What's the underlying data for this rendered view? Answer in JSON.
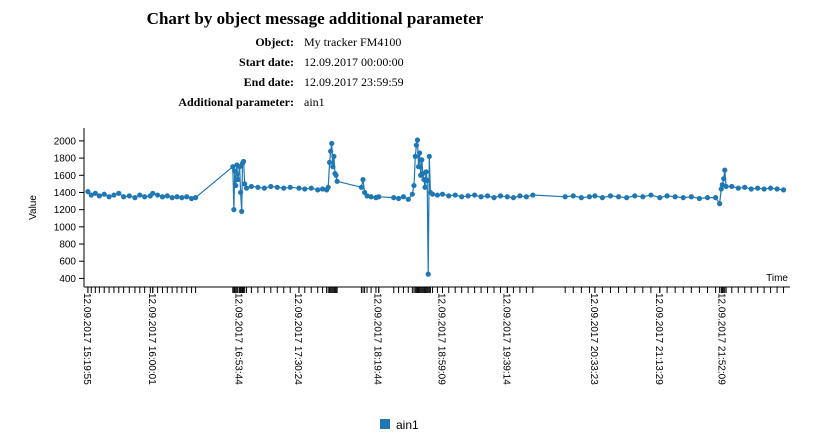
{
  "header": {
    "title": "Chart by object message additional parameter",
    "rows": [
      [
        "Object:",
        "My tracker FM4100"
      ],
      [
        "Start date:",
        "12.09.2017 00:00:00"
      ],
      [
        "End date:",
        "12.09.2017 23:59:59"
      ],
      [
        "Additional parameter:",
        "ain1"
      ]
    ]
  },
  "chart_data": {
    "type": "line",
    "x_label": "Time",
    "y_label": "Value",
    "xlim": [
      "12.09.2017 15:17:30",
      "12.09.2017 22:34:00"
    ],
    "xticks": [
      "12.09.2017 15:19:55",
      "12.09.2017 16:00:01",
      "12.09.2017 16:53:44",
      "12.09.2017 17:30:24",
      "12.09.2017 18:19:44",
      "12.09.2017 18:59:09",
      "12.09.2017 19:39:14",
      "12.09.2017 20:33:23",
      "12.09.2017 21:13:29",
      "12.09.2017 21:52:09"
    ],
    "ylim": [
      300,
      2150
    ],
    "yticks": [
      400,
      600,
      800,
      1000,
      1200,
      1400,
      1600,
      1800,
      2000
    ],
    "x": [
      "12.09.2017 15:19:55",
      "12.09.2017 15:22:00",
      "12.09.2017 15:24:30",
      "12.09.2017 15:27:00",
      "12.09.2017 15:30:00",
      "12.09.2017 15:33:00",
      "12.09.2017 15:36:00",
      "12.09.2017 15:39:00",
      "12.09.2017 15:42:00",
      "12.09.2017 15:45:30",
      "12.09.2017 15:49:00",
      "12.09.2017 15:52:00",
      "12.09.2017 15:55:00",
      "12.09.2017 15:58:30",
      "12.09.2017 16:00:01",
      "12.09.2017 16:03:00",
      "12.09.2017 16:06:00",
      "12.09.2017 16:09:00",
      "12.09.2017 16:12:00",
      "12.09.2017 16:15:00",
      "12.09.2017 16:18:00",
      "12.09.2017 16:21:00",
      "12.09.2017 16:24:00",
      "12.09.2017 16:26:30",
      "12.09.2017 16:49:30",
      "12.09.2017 16:50:10",
      "12.09.2017 16:50:40",
      "12.09.2017 16:51:20",
      "12.09.2017 16:52:00",
      "12.09.2017 16:52:40",
      "12.09.2017 16:53:44",
      "12.09.2017 16:54:20",
      "12.09.2017 16:55:00",
      "12.09.2017 16:55:30",
      "12.09.2017 16:56:10",
      "12.09.2017 16:56:50",
      "12.09.2017 16:58:00",
      "12.09.2017 17:01:00",
      "12.09.2017 17:05:00",
      "12.09.2017 17:09:00",
      "12.09.2017 17:13:00",
      "12.09.2017 17:17:00",
      "12.09.2017 17:21:00",
      "12.09.2017 17:25:00",
      "12.09.2017 17:30:24",
      "12.09.2017 17:34:00",
      "12.09.2017 17:38:00",
      "12.09.2017 17:42:00",
      "12.09.2017 17:45:00",
      "12.09.2017 17:47:30",
      "12.09.2017 17:48:30",
      "12.09.2017 17:49:20",
      "12.09.2017 17:50:00",
      "12.09.2017 17:50:40",
      "12.09.2017 17:51:20",
      "12.09.2017 17:52:00",
      "12.09.2017 17:52:40",
      "12.09.2017 17:53:20",
      "12.09.2017 17:54:00",
      "12.09.2017 18:09:00",
      "12.09.2017 18:10:00",
      "12.09.2017 18:11:00",
      "12.09.2017 18:12:30",
      "12.09.2017 18:15:00",
      "12.09.2017 18:18:00",
      "12.09.2017 18:19:44",
      "12.09.2017 18:29:00",
      "12.09.2017 18:32:00",
      "12.09.2017 18:35:00",
      "12.09.2017 18:38:00",
      "12.09.2017 18:40:30",
      "12.09.2017 18:41:30",
      "12.09.2017 18:42:20",
      "12.09.2017 18:43:00",
      "12.09.2017 18:43:40",
      "12.09.2017 18:44:20",
      "12.09.2017 18:45:00",
      "12.09.2017 18:45:40",
      "12.09.2017 18:46:20",
      "12.09.2017 18:47:00",
      "12.09.2017 18:47:40",
      "12.09.2017 18:48:20",
      "12.09.2017 18:49:00",
      "12.09.2017 18:49:40",
      "12.09.2017 18:50:20",
      "12.09.2017 18:51:00",
      "12.09.2017 18:51:40",
      "12.09.2017 18:53:00",
      "12.09.2017 18:56:00",
      "12.09.2017 18:59:09",
      "12.09.2017 19:03:00",
      "12.09.2017 19:07:00",
      "12.09.2017 19:11:00",
      "12.09.2017 19:15:00",
      "12.09.2017 19:19:00",
      "12.09.2017 19:23:00",
      "12.09.2017 19:27:00",
      "12.09.2017 19:31:00",
      "12.09.2017 19:35:00",
      "12.09.2017 19:39:14",
      "12.09.2017 19:43:00",
      "12.09.2017 19:47:00",
      "12.09.2017 19:51:00",
      "12.09.2017 19:55:00",
      "12.09.2017 20:15:00",
      "12.09.2017 20:20:00",
      "12.09.2017 20:25:00",
      "12.09.2017 20:30:00",
      "12.09.2017 20:33:23",
      "12.09.2017 20:38:00",
      "12.09.2017 20:43:00",
      "12.09.2017 20:48:00",
      "12.09.2017 20:53:00",
      "12.09.2017 20:58:00",
      "12.09.2017 21:03:00",
      "12.09.2017 21:08:00",
      "12.09.2017 21:13:29",
      "12.09.2017 21:18:00",
      "12.09.2017 21:23:00",
      "12.09.2017 21:28:00",
      "12.09.2017 21:33:00",
      "12.09.2017 21:38:00",
      "12.09.2017 21:43:00",
      "12.09.2017 21:48:00",
      "12.09.2017 21:50:30",
      "12.09.2017 21:51:30",
      "12.09.2017 21:52:09",
      "12.09.2017 21:53:00",
      "12.09.2017 21:53:40",
      "12.09.2017 21:54:30",
      "12.09.2017 21:58:00",
      "12.09.2017 22:02:00",
      "12.09.2017 22:06:00",
      "12.09.2017 22:10:00",
      "12.09.2017 22:14:00",
      "12.09.2017 22:18:00",
      "12.09.2017 22:22:00",
      "12.09.2017 22:26:00",
      "12.09.2017 22:30:00"
    ],
    "series": [
      {
        "name": "ain1",
        "color": "#1f77b4",
        "values": [
          1410,
          1370,
          1390,
          1360,
          1380,
          1350,
          1370,
          1390,
          1350,
          1360,
          1340,
          1370,
          1350,
          1360,
          1390,
          1370,
          1350,
          1360,
          1340,
          1350,
          1340,
          1350,
          1330,
          1340,
          1700,
          1200,
          1650,
          1480,
          1720,
          1550,
          1700,
          1400,
          1180,
          1740,
          1760,
          1500,
          1450,
          1470,
          1460,
          1450,
          1470,
          1460,
          1450,
          1460,
          1450,
          1440,
          1450,
          1430,
          1440,
          1430,
          1460,
          1750,
          1880,
          1970,
          1700,
          1820,
          1620,
          1600,
          1530,
          1460,
          1550,
          1400,
          1360,
          1350,
          1340,
          1350,
          1340,
          1330,
          1350,
          1320,
          1380,
          1480,
          1820,
          1950,
          2010,
          1700,
          1860,
          1600,
          1780,
          1620,
          1550,
          1460,
          1640,
          1540,
          450,
          1820,
          1400,
          1380,
          1370,
          1380,
          1360,
          1370,
          1350,
          1360,
          1370,
          1350,
          1360,
          1340,
          1360,
          1350,
          1340,
          1360,
          1350,
          1370,
          1350,
          1360,
          1340,
          1350,
          1360,
          1340,
          1360,
          1350,
          1340,
          1360,
          1350,
          1370,
          1340,
          1360,
          1350,
          1340,
          1350,
          1330,
          1340,
          1340,
          1270,
          1440,
          1490,
          1560,
          1660,
          1470,
          1470,
          1450,
          1460,
          1440,
          1450,
          1440,
          1450,
          1440,
          1430
        ]
      }
    ]
  }
}
